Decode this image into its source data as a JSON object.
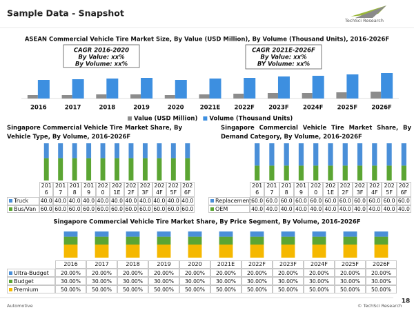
{
  "header": {
    "title": "Sample Data - Snapshot"
  },
  "logo": "TechSci Research",
  "footer": {
    "left": "Automotive",
    "right": "© TechSci Research",
    "page": "18"
  },
  "chart_data": [
    {
      "type": "bar",
      "title": "ASEAN Commercial Vehicle Tire Market Size, By Value (USD Million), By Volume (Thousand Units), 2016-2026F",
      "categories": [
        "2016",
        "2017",
        "2018",
        "2019",
        "2020",
        "2021E",
        "2022F",
        "2023F",
        "2024F",
        "2025F",
        "2026F"
      ],
      "series": [
        {
          "name": "Value (USD Million)",
          "color": "#8c8c8c",
          "values": [
            5,
            5,
            6,
            6,
            5,
            6,
            7,
            8,
            8,
            9,
            10
          ]
        },
        {
          "name": "Volume (Thousand Units)",
          "color": "#3d8fe0",
          "values": [
            27,
            28,
            29,
            30,
            27,
            29,
            30,
            32,
            33,
            35,
            37
          ]
        }
      ],
      "ylim": [
        0,
        40
      ],
      "legend": "bottom",
      "annotations": [
        "CAGR 2016-2020",
        "By Value: xx%",
        "By Volume: xx%",
        "CAGR 2021E-2026F",
        "By Value: xx%",
        "BY Volume: xx%"
      ]
    },
    {
      "type": "stacked_bar",
      "title": "Singapore Commercial Vehicle Tire Market Share, By Vehicle Type, By Volume, 2016-2026F",
      "categories": [
        "2016",
        "2017",
        "2018",
        "2019",
        "2020",
        "2021E",
        "2022F",
        "2023F",
        "2024F",
        "2025F",
        "2026F"
      ],
      "series": [
        {
          "name": "Truck",
          "color": "#4a8fd8",
          "values": [
            40,
            40,
            40,
            40,
            40,
            40,
            40,
            40,
            40,
            40,
            40
          ],
          "value_labels": [
            "40.0",
            "40.0",
            "40.0",
            "40.0",
            "40.0",
            "40.0",
            "40.0",
            "40.0",
            "40.0",
            "40.0",
            "40.0"
          ]
        },
        {
          "name": "Bus/Van",
          "color": "#5ba533",
          "values": [
            60,
            60,
            60,
            60,
            60,
            60,
            60,
            60,
            60,
            60,
            60
          ],
          "value_labels": [
            "60.0",
            "60.0",
            "60.0",
            "60.0",
            "60.0",
            "60.0",
            "60.0",
            "60.0",
            "60.0",
            "60.0",
            "60.0"
          ]
        }
      ],
      "ylim": [
        0,
        100
      ]
    },
    {
      "type": "stacked_bar",
      "title": "Singapore Commercial Vehicle Tire Market Share, By Demand Category, By Volume, 2016-2026F",
      "categories": [
        "2016",
        "2017",
        "2018",
        "2019",
        "2020",
        "2021E",
        "2022F",
        "2023F",
        "2024F",
        "2025F",
        "2026F"
      ],
      "series": [
        {
          "name": "Replacement",
          "color": "#4a8fd8",
          "values": [
            60,
            60,
            60,
            60,
            60,
            60,
            60,
            60,
            60,
            60,
            60
          ],
          "value_labels": [
            "60.0",
            "60.0",
            "60.0",
            "60.0",
            "60.0",
            "60.0",
            "60.0",
            "60.0",
            "60.0",
            "60.0",
            "60.0"
          ]
        },
        {
          "name": "OEM",
          "color": "#5ba533",
          "values": [
            40,
            40,
            40,
            40,
            40,
            40,
            40,
            40,
            40,
            40,
            40
          ],
          "value_labels": [
            "40.0",
            "40.0",
            "40.0",
            "40.0",
            "40.0",
            "40.0",
            "40.0",
            "40.0",
            "40.0",
            "40.0",
            "40.0"
          ]
        }
      ],
      "ylim": [
        0,
        100
      ]
    },
    {
      "type": "stacked_bar",
      "title": "Singapore Commercial Vehicle Tire Market Share, By Price Segment, By Volume, 2016-2026F",
      "categories": [
        "2016",
        "2017",
        "2018",
        "2019",
        "2020",
        "2021E",
        "2022F",
        "2023F",
        "2024F",
        "2025F",
        "2026F"
      ],
      "series": [
        {
          "name": "Ultra-Budget",
          "color": "#4a8fd8",
          "values": [
            20,
            20,
            20,
            20,
            20,
            20,
            20,
            20,
            20,
            20,
            20
          ],
          "value_labels": [
            "20.00%",
            "20.00%",
            "20.00%",
            "20.00%",
            "20.00%",
            "20.00%",
            "20.00%",
            "20.00%",
            "20.00%",
            "20.00%",
            "20.00%"
          ]
        },
        {
          "name": "Budget",
          "color": "#5ba533",
          "values": [
            30,
            30,
            30,
            30,
            30,
            30,
            30,
            30,
            30,
            30,
            30
          ],
          "value_labels": [
            "30.00%",
            "30.00%",
            "30.00%",
            "30.00%",
            "30.00%",
            "30.00%",
            "30.00%",
            "30.00%",
            "30.00%",
            "30.00%",
            "30.00%"
          ]
        },
        {
          "name": "Premium",
          "color": "#f5b800",
          "values": [
            50,
            50,
            50,
            50,
            50,
            50,
            50,
            50,
            50,
            50,
            50
          ],
          "value_labels": [
            "50.00%",
            "50.00%",
            "50.00%",
            "50.00%",
            "50.00%",
            "50.00%",
            "50.00%",
            "50.00%",
            "50.00%",
            "50.00%",
            "50.00%"
          ]
        }
      ],
      "ylim": [
        0,
        100
      ]
    }
  ]
}
